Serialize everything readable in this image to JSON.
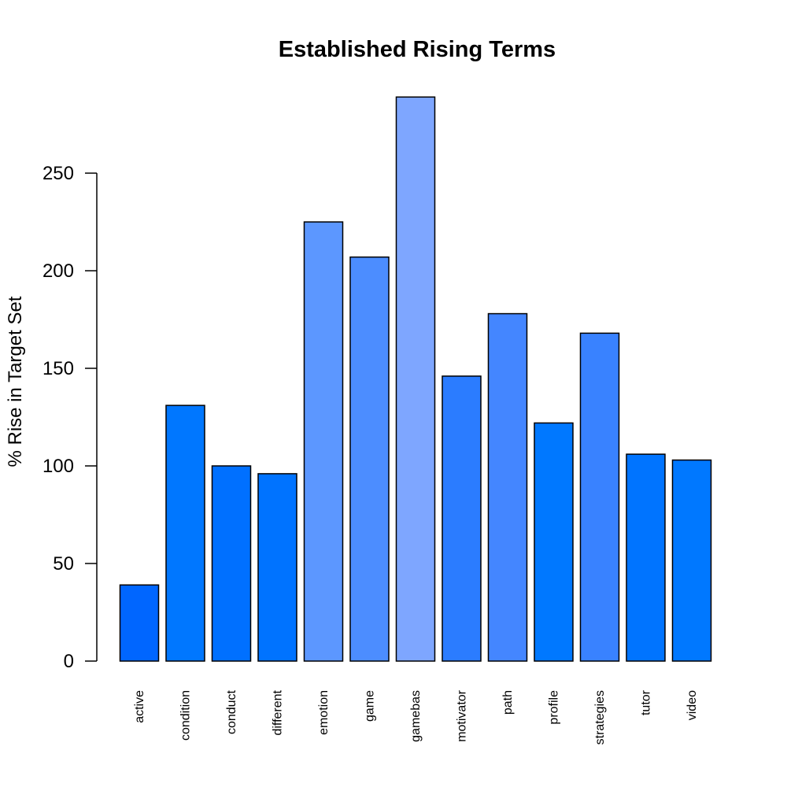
{
  "chart_data": {
    "type": "bar",
    "title": "Established Rising Terms",
    "xlabel": "",
    "ylabel": "% Rise in Target Set",
    "ylim": [
      0,
      290
    ],
    "yticks": [
      "0",
      "50",
      "100",
      "150",
      "200",
      "250"
    ],
    "grid": false,
    "categories": [
      "active",
      "condition",
      "conduct",
      "different",
      "emotion",
      "game",
      "gamebas",
      "motivator",
      "path",
      "profile",
      "strategies",
      "tutor",
      "video"
    ],
    "values": [
      39,
      131,
      100,
      96,
      225,
      207,
      289,
      146,
      178,
      122,
      168,
      106,
      103
    ],
    "colors": [
      "#0066ff",
      "#0077ff",
      "#0070ff",
      "#0073ff",
      "#5c97ff",
      "#4c8dff",
      "#7ea6ff",
      "#2b7cff",
      "#4486ff",
      "#0078ff",
      "#3982ff",
      "#0074ff",
      "#0078ff"
    ]
  }
}
